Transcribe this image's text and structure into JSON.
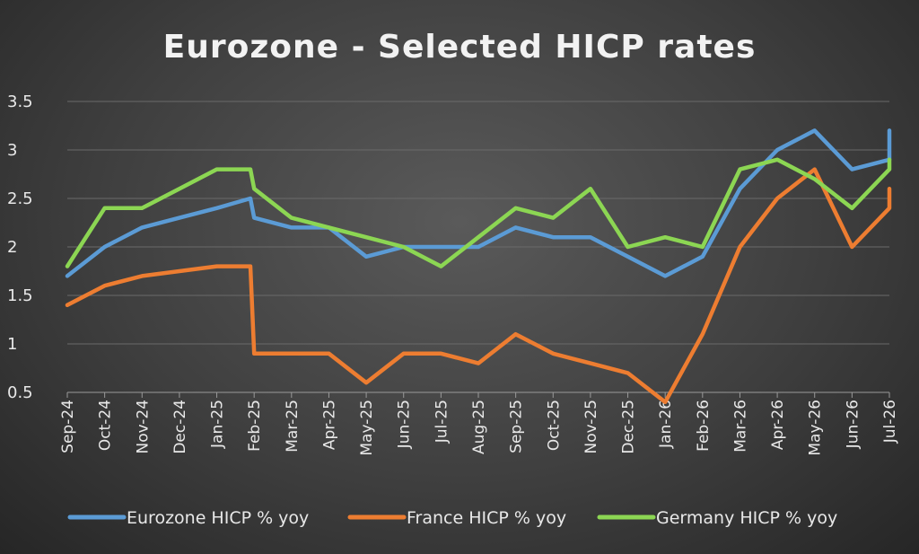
{
  "chart_data": {
    "type": "line",
    "title": "Eurozone - Selected HICP rates",
    "xlabel": "",
    "ylabel": "",
    "ylim": [
      0.5,
      3.5
    ],
    "yticks": [
      "0.5",
      "1",
      "1.5",
      "2",
      "2.5",
      "3",
      "3.5"
    ],
    "grid": true,
    "legend_position": "bottom",
    "categories": [
      "Sep-24",
      "Oct-24",
      "Nov-24",
      "Dec-24",
      "Jan-25",
      "Feb-25",
      "Mar-25",
      "Apr-25",
      "May-25",
      "Jun-25",
      "Jul-25",
      "Aug-25",
      "Sep-25",
      "Oct-25",
      "Nov-25",
      "Dec-25",
      "Jan-26",
      "Feb-26",
      "Mar-26",
      "Apr-26",
      "May-26",
      "Jun-26",
      "Jul-26"
    ],
    "series": [
      {
        "name": "Eurozone HICP % yoy",
        "color": "#5b9bd5",
        "points": [
          [
            "Sep-24",
            1.7
          ],
          [
            "Oct-24",
            2.0
          ],
          [
            "Nov-24",
            2.2
          ],
          [
            "Dec-24",
            2.3
          ],
          [
            "Jan-25",
            2.4
          ],
          [
            "Jan-25 +0.9",
            2.5
          ],
          [
            "Feb-25",
            2.3
          ],
          [
            "Mar-25",
            2.2
          ],
          [
            "Apr-25",
            2.2
          ],
          [
            "May-25",
            1.9
          ],
          [
            "Jun-25",
            2.0
          ],
          [
            "Jul-25",
            2.0
          ],
          [
            "Aug-25",
            2.0
          ],
          [
            "Sep-25",
            2.2
          ],
          [
            "Oct-25",
            2.1
          ],
          [
            "Nov-25",
            2.1
          ],
          [
            "Dec-25",
            1.9
          ],
          [
            "Jan-26",
            1.7
          ],
          [
            "Feb-26",
            1.9
          ],
          [
            "Mar-26",
            2.6
          ],
          [
            "Apr-26",
            3.0
          ],
          [
            "May-26",
            3.2
          ],
          [
            "Jun-26",
            2.8
          ],
          [
            "Jul-26",
            2.9
          ],
          [
            "Jul-26",
            3.2
          ]
        ]
      },
      {
        "name": "France HICP % yoy",
        "color": "#ed7d31",
        "points": [
          [
            "Sep-24",
            1.4
          ],
          [
            "Oct-24",
            1.6
          ],
          [
            "Nov-24",
            1.7
          ],
          [
            "Dec-24",
            1.75
          ],
          [
            "Jan-25",
            1.8
          ],
          [
            "Jan-25 +0.9",
            1.8
          ],
          [
            "Feb-25",
            0.9
          ],
          [
            "Mar-25",
            0.9
          ],
          [
            "Apr-25",
            0.9
          ],
          [
            "May-25",
            0.6
          ],
          [
            "Jun-25",
            0.9
          ],
          [
            "Jul-25",
            0.9
          ],
          [
            "Aug-25",
            0.8
          ],
          [
            "Sep-25",
            1.1
          ],
          [
            "Oct-25",
            0.9
          ],
          [
            "Nov-25",
            0.8
          ],
          [
            "Dec-25",
            0.7
          ],
          [
            "Jan-26",
            0.4
          ],
          [
            "Feb-26",
            1.1
          ],
          [
            "Mar-26",
            2.0
          ],
          [
            "Apr-26",
            2.5
          ],
          [
            "May-26",
            2.8
          ],
          [
            "Jun-26",
            2.0
          ],
          [
            "Jul-26",
            2.4
          ],
          [
            "Jul-26",
            2.6
          ]
        ]
      },
      {
        "name": "Germany HICP % yoy",
        "color": "#8cd653",
        "points": [
          [
            "Sep-24",
            1.8
          ],
          [
            "Oct-24",
            2.4
          ],
          [
            "Nov-24",
            2.4
          ],
          [
            "Dec-24",
            2.6
          ],
          [
            "Jan-25",
            2.8
          ],
          [
            "Jan-25 +0.9",
            2.8
          ],
          [
            "Feb-25",
            2.6
          ],
          [
            "Mar-25",
            2.3
          ],
          [
            "Apr-25",
            2.2
          ],
          [
            "May-25",
            2.1
          ],
          [
            "Jun-25",
            2.0
          ],
          [
            "Jul-25",
            1.8
          ],
          [
            "Aug-25",
            2.1
          ],
          [
            "Sep-25",
            2.4
          ],
          [
            "Oct-25",
            2.3
          ],
          [
            "Nov-25",
            2.6
          ],
          [
            "Dec-25",
            2.0
          ],
          [
            "Jan-26",
            2.1
          ],
          [
            "Feb-26",
            2.0
          ],
          [
            "Mar-26",
            2.8
          ],
          [
            "Apr-26",
            2.9
          ],
          [
            "May-26",
            2.7
          ],
          [
            "Jun-26",
            2.4
          ],
          [
            "Jul-26",
            2.8
          ],
          [
            "Jul-26",
            2.9
          ]
        ]
      }
    ]
  }
}
